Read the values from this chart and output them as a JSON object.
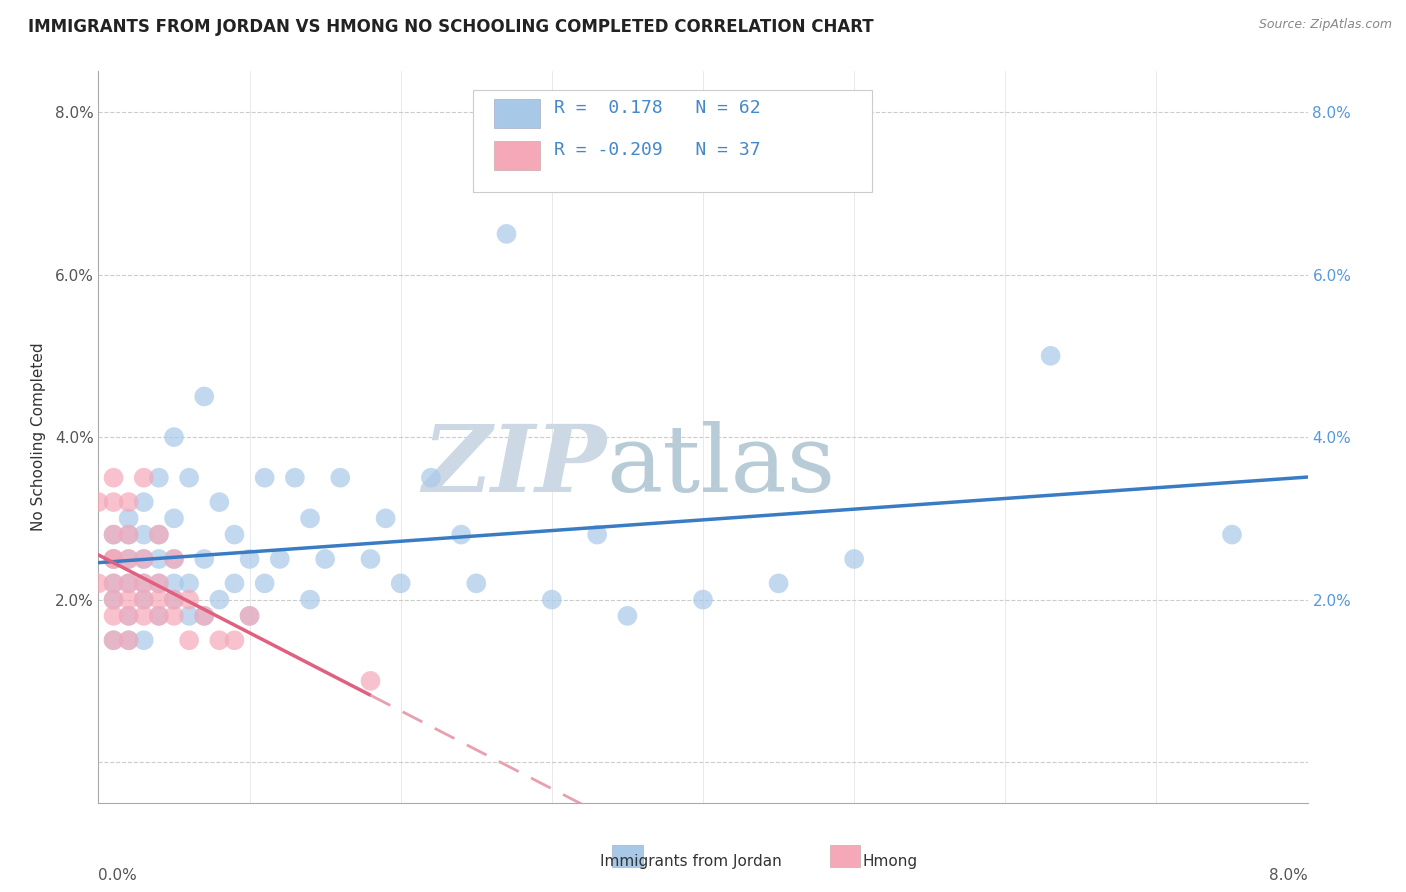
{
  "title": "IMMIGRANTS FROM JORDAN VS HMONG NO SCHOOLING COMPLETED CORRELATION CHART",
  "source": "Source: ZipAtlas.com",
  "ylabel": "No Schooling Completed",
  "ytick_values": [
    0.0,
    0.02,
    0.04,
    0.06,
    0.08
  ],
  "xlim": [
    0.0,
    0.08
  ],
  "ylim": [
    -0.005,
    0.085
  ],
  "legend_jordan": "Immigrants from Jordan",
  "legend_hmong": "Hmong",
  "R_jordan": 0.178,
  "N_jordan": 62,
  "R_hmong": -0.209,
  "N_hmong": 37,
  "jordan_color": "#a8c8e8",
  "hmong_color": "#f5a8b8",
  "jordan_line_color": "#3a7cc4",
  "hmong_line_color": "#e06080",
  "hmong_dash_color": "#e8a0b0",
  "background_color": "#ffffff",
  "watermark_color": "#dde8f0",
  "jordan_x": [
    0.001,
    0.001,
    0.001,
    0.001,
    0.001,
    0.002,
    0.002,
    0.002,
    0.002,
    0.002,
    0.002,
    0.003,
    0.003,
    0.003,
    0.003,
    0.003,
    0.003,
    0.004,
    0.004,
    0.004,
    0.004,
    0.004,
    0.005,
    0.005,
    0.005,
    0.005,
    0.005,
    0.006,
    0.006,
    0.006,
    0.007,
    0.007,
    0.007,
    0.008,
    0.008,
    0.009,
    0.009,
    0.01,
    0.01,
    0.011,
    0.011,
    0.012,
    0.013,
    0.014,
    0.014,
    0.015,
    0.016,
    0.018,
    0.019,
    0.02,
    0.022,
    0.024,
    0.025,
    0.027,
    0.03,
    0.033,
    0.035,
    0.04,
    0.045,
    0.05,
    0.063,
    0.075
  ],
  "jordan_y": [
    0.02,
    0.022,
    0.025,
    0.028,
    0.015,
    0.018,
    0.022,
    0.025,
    0.028,
    0.03,
    0.015,
    0.02,
    0.022,
    0.025,
    0.028,
    0.032,
    0.015,
    0.018,
    0.022,
    0.025,
    0.028,
    0.035,
    0.02,
    0.022,
    0.025,
    0.03,
    0.04,
    0.018,
    0.022,
    0.035,
    0.018,
    0.025,
    0.045,
    0.02,
    0.032,
    0.022,
    0.028,
    0.018,
    0.025,
    0.022,
    0.035,
    0.025,
    0.035,
    0.02,
    0.03,
    0.025,
    0.035,
    0.025,
    0.03,
    0.022,
    0.035,
    0.028,
    0.022,
    0.065,
    0.02,
    0.028,
    0.018,
    0.02,
    0.022,
    0.025,
    0.05,
    0.028
  ],
  "hmong_x": [
    0.0,
    0.0,
    0.001,
    0.001,
    0.001,
    0.001,
    0.001,
    0.001,
    0.001,
    0.001,
    0.001,
    0.002,
    0.002,
    0.002,
    0.002,
    0.002,
    0.002,
    0.002,
    0.003,
    0.003,
    0.003,
    0.003,
    0.003,
    0.004,
    0.004,
    0.004,
    0.004,
    0.005,
    0.005,
    0.005,
    0.006,
    0.006,
    0.007,
    0.008,
    0.009,
    0.01,
    0.018
  ],
  "hmong_y": [
    0.022,
    0.032,
    0.018,
    0.02,
    0.022,
    0.025,
    0.028,
    0.032,
    0.035,
    0.025,
    0.015,
    0.018,
    0.02,
    0.022,
    0.025,
    0.028,
    0.032,
    0.015,
    0.018,
    0.02,
    0.022,
    0.025,
    0.035,
    0.018,
    0.02,
    0.022,
    0.028,
    0.018,
    0.02,
    0.025,
    0.015,
    0.02,
    0.018,
    0.015,
    0.015,
    0.018,
    0.01
  ]
}
